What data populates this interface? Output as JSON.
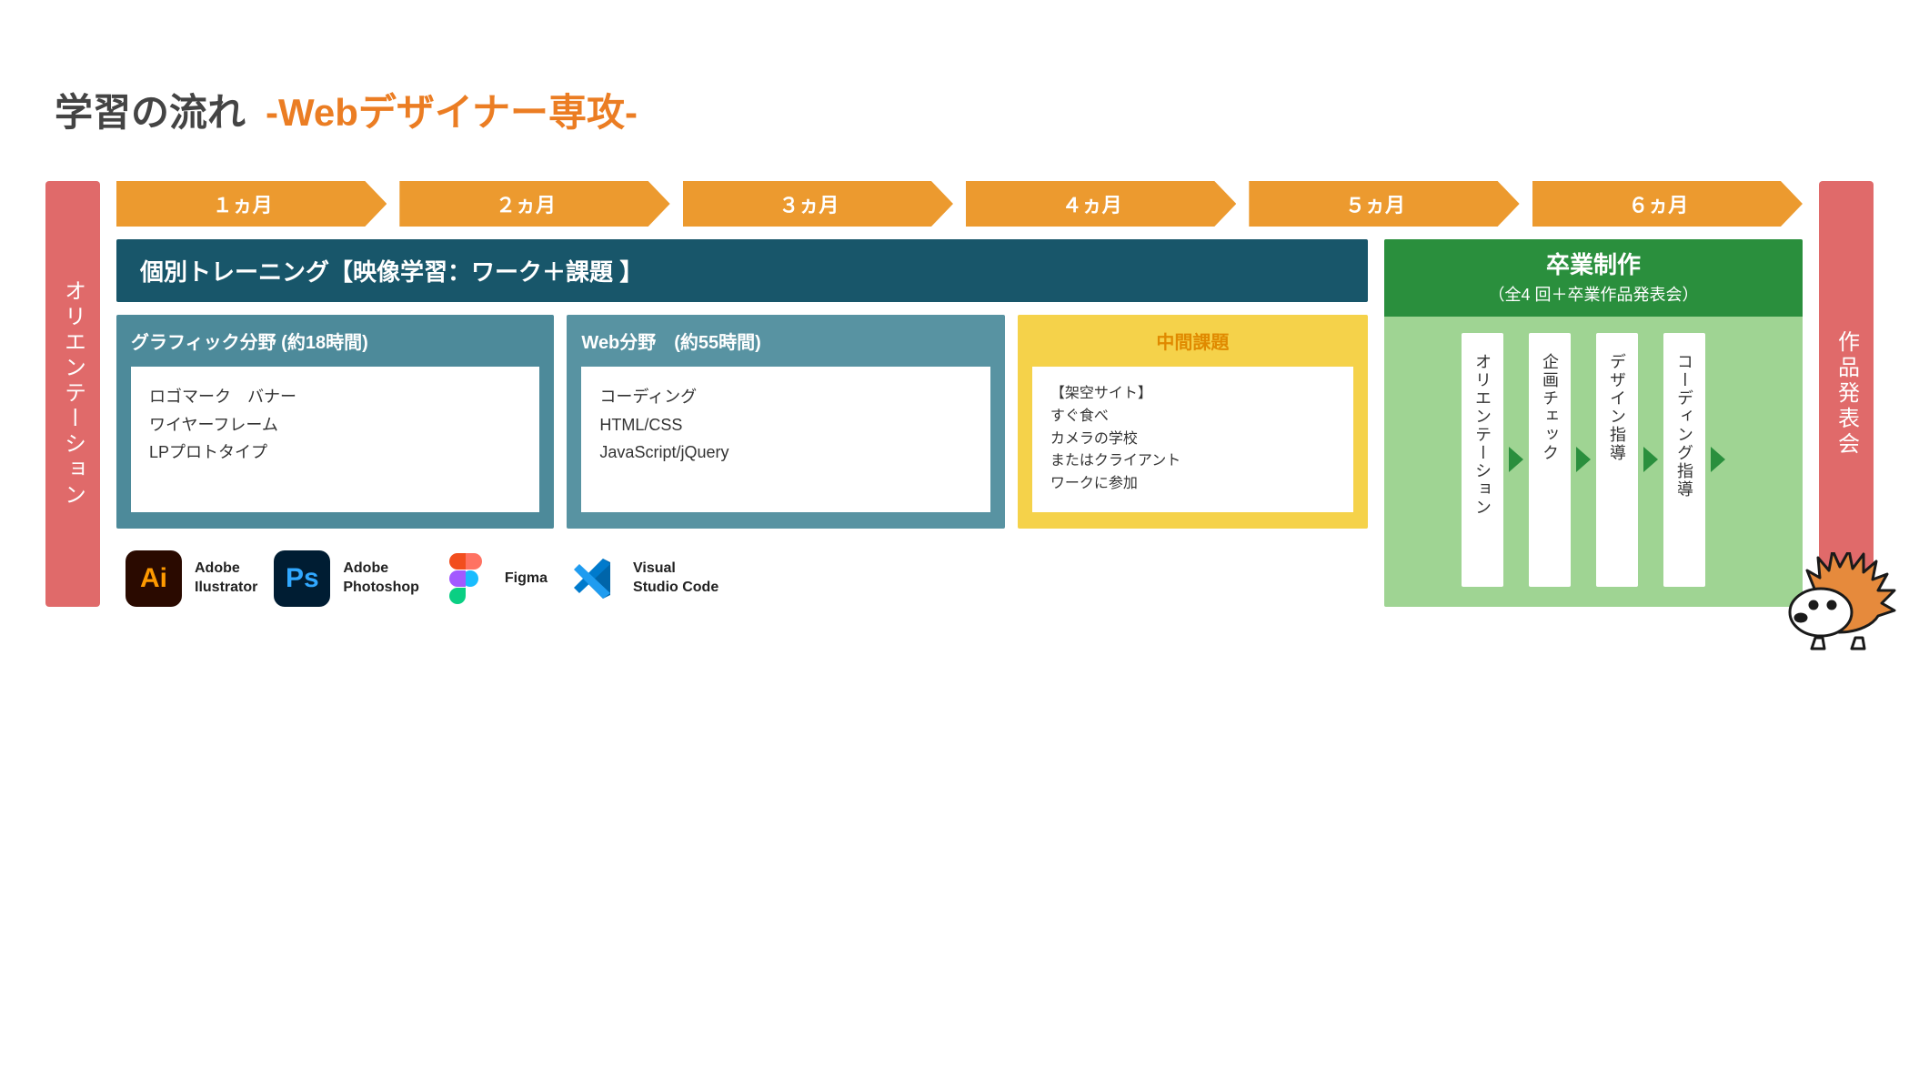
{
  "colors": {
    "orange": "#eb7d23",
    "dark_text": "#444444",
    "ribbon_red": "#e06a6a",
    "month_bg": "#ec9a2f",
    "month_text": "#ffffff",
    "teal_header": "#18566a",
    "teal_panel": "#4d8a9a",
    "teal_panel_mid": "#5893a2",
    "yellow_panel": "#f5d24a",
    "yellow_title": "#e08a00",
    "grad_header": "#2a8f3d",
    "grad_body": "#9fd493",
    "tri_green": "#2a8f3d",
    "white": "#ffffff",
    "black": "#1a1a1a"
  },
  "title": {
    "main": "学習の流れ",
    "sub": "-Webデザイナー専攻-",
    "sub_color": "#eb7d23"
  },
  "ribbons": {
    "left": "オリエンテーション",
    "right": "作品発表会"
  },
  "months": [
    "１ヵ月",
    "２ヵ月",
    "３ヵ月",
    "４ヵ月",
    "５ヵ月",
    "６ヵ月"
  ],
  "training": {
    "header": "個別トレーニング【映像学習：ワーク＋課題 】",
    "graphic": {
      "title": "グラフィック分野 (約18時間)",
      "items": "ロゴマーク　バナー\nワイヤーフレーム\nLPプロトタイプ"
    },
    "web": {
      "title": "Web分野　(約55時間)",
      "items": "コーディング\nHTML/CSS\nJavaScript/jQuery"
    },
    "mid": {
      "title": "中間課題",
      "items": "【架空サイト】\nすぐ食べ\nカメラの学校\nまたはクライアント\nワークに参加"
    }
  },
  "tools": [
    {
      "name": "Adobe\nIlustrator",
      "icon_text": "Ai",
      "icon_bg": "#2a0a00",
      "icon_fg": "#ff9a00"
    },
    {
      "name": "Adobe\nPhotoshop",
      "icon_text": "Ps",
      "icon_bg": "#001d33",
      "icon_fg": "#31a8ff"
    },
    {
      "name": "Figma",
      "icon_text": "",
      "icon_bg": "#ffffff",
      "icon_fg": "#000000"
    },
    {
      "name": "Visual\nStudio Code",
      "icon_text": "",
      "icon_bg": "#ffffff",
      "icon_fg": "#0078d4"
    }
  ],
  "grad": {
    "title": "卒業制作",
    "subtitle": "（全4 回＋卒業作品発表会）",
    "stages": [
      "オリエンテーション",
      "企画チェック",
      "デザイン指導",
      "コーディング指導"
    ]
  },
  "fonts": {
    "title_size": 42,
    "month_size": 22,
    "header_size": 26,
    "panel_title_size": 20,
    "panel_body_size": 18,
    "tool_label_size": 16,
    "vcol_size": 18
  }
}
